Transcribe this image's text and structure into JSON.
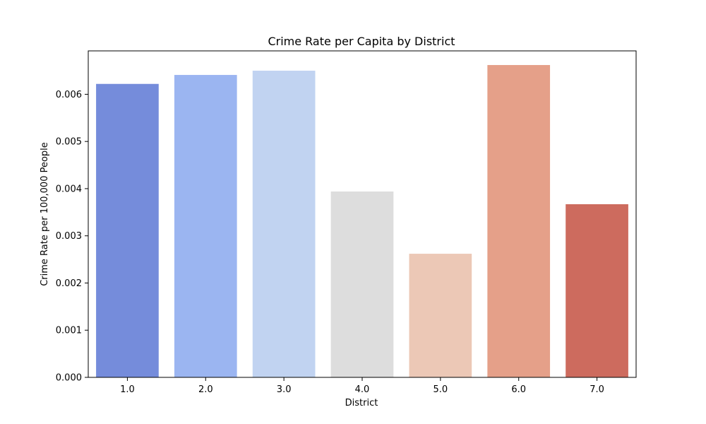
{
  "chart_data": {
    "type": "bar",
    "title": "Crime Rate per Capita by District",
    "xlabel": "District",
    "ylabel": "Crime Rate per 100,000 People",
    "categories": [
      "1.0",
      "2.0",
      "3.0",
      "4.0",
      "5.0",
      "6.0",
      "7.0"
    ],
    "values": [
      0.00622,
      0.00641,
      0.0065,
      0.00394,
      0.00262,
      0.00662,
      0.00367
    ],
    "colors": [
      "#758cdb",
      "#9bb5f1",
      "#c1d3f1",
      "#dddddd",
      "#ecc8b6",
      "#e5a089",
      "#cd6b5e"
    ],
    "ylim": [
      0,
      0.00692
    ],
    "yticks": [
      "0.000",
      "0.001",
      "0.002",
      "0.003",
      "0.004",
      "0.005",
      "0.006"
    ],
    "ytick_values": [
      0,
      0.001,
      0.002,
      0.003,
      0.004,
      0.005,
      0.006
    ],
    "grid": false,
    "legend": "none"
  }
}
